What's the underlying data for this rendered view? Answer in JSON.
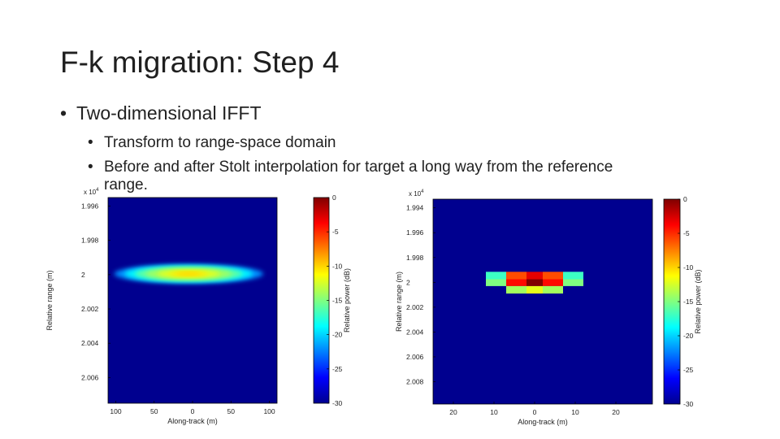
{
  "slide": {
    "title": "F-k migration: Step 4",
    "bullet_1": "Two-dimensional IFFT",
    "sub_bullet_1": "Transform to range-space domain",
    "sub_bullet_2_line_1": "Before and after Stolt interpolation for target a long way from the reference",
    "sub_bullet_2_line_2": "range."
  },
  "chart_data": [
    {
      "type": "heatmap",
      "title": "",
      "xlabel": "Along-track (m)",
      "ylabel": "Relative range (m)",
      "x_ticks": [
        100,
        50,
        0,
        50,
        100
      ],
      "x_tick_values": [
        -100,
        -50,
        0,
        50,
        100
      ],
      "xlim": [
        -110,
        110
      ],
      "y_ticks": [
        "1.996",
        "1.998",
        "2",
        "2.002",
        "2.004",
        "2.006"
      ],
      "y_tick_values": [
        1.996,
        1.998,
        2.0,
        2.002,
        2.004,
        2.006
      ],
      "ylim": [
        1.9955,
        2.0075
      ],
      "y_multiplier": "x 10^4",
      "background_db": -30,
      "blob": {
        "center_x": -5,
        "center_y": 1.99995,
        "half_width_x": 97,
        "half_height_y": 0.00055,
        "peak_db": -10
      },
      "colorbar": {
        "label": "Relative power (dB)",
        "ticks": [
          0,
          -5,
          -10,
          -15,
          -20,
          -25,
          -30
        ],
        "range": [
          -30,
          0
        ]
      }
    },
    {
      "type": "heatmap",
      "title": "",
      "xlabel": "Along-track (m)",
      "ylabel": "Relative range (m)",
      "x_ticks": [
        20,
        10,
        0,
        10,
        20
      ],
      "x_tick_values": [
        -20,
        -10,
        0,
        10,
        20
      ],
      "xlim": [
        -25,
        29
      ],
      "y_ticks": [
        "1.994",
        "1.996",
        "1.998",
        "2",
        "2.002",
        "2.004",
        "2.006",
        "2.008"
      ],
      "y_tick_values": [
        1.994,
        1.996,
        1.998,
        2.0,
        2.002,
        2.004,
        2.006,
        2.008
      ],
      "ylim": [
        1.9933,
        2.0098
      ],
      "y_multiplier": "x 10^4",
      "cells": [
        {
          "x0": -12,
          "x1": -7,
          "y0": 1.99915,
          "y1": 1.99975,
          "db": -17
        },
        {
          "x0": 7,
          "x1": 12,
          "y0": 1.99915,
          "y1": 1.99975,
          "db": -17
        },
        {
          "x0": -7,
          "x1": -2,
          "y0": 1.99915,
          "y1": 1.99975,
          "db": -6
        },
        {
          "x0": -2,
          "x1": 2,
          "y0": 1.99915,
          "y1": 1.99975,
          "db": -3
        },
        {
          "x0": 2,
          "x1": 7,
          "y0": 1.99915,
          "y1": 1.99975,
          "db": -6
        },
        {
          "x0": -7,
          "x1": -2,
          "y0": 1.99975,
          "y1": 2.0003,
          "db": -4
        },
        {
          "x0": -2,
          "x1": 2,
          "y0": 1.99975,
          "y1": 2.0003,
          "db": 0
        },
        {
          "x0": 2,
          "x1": 7,
          "y0": 1.99975,
          "y1": 2.0003,
          "db": -4
        },
        {
          "x0": -12,
          "x1": -7,
          "y0": 1.99975,
          "y1": 2.0003,
          "db": -15
        },
        {
          "x0": 7,
          "x1": 12,
          "y0": 1.99975,
          "y1": 2.0003,
          "db": -15
        },
        {
          "x0": -7,
          "x1": -2,
          "y0": 2.0003,
          "y1": 2.0009,
          "db": -14
        },
        {
          "x0": -2,
          "x1": 2,
          "y0": 2.0003,
          "y1": 2.0009,
          "db": -12
        },
        {
          "x0": 2,
          "x1": 7,
          "y0": 2.0003,
          "y1": 2.0009,
          "db": -14
        }
      ],
      "background_db": -30,
      "colorbar": {
        "label": "Relative power (dB)",
        "ticks": [
          0,
          -5,
          -10,
          -15,
          -20,
          -25,
          -30
        ],
        "range": [
          -30,
          0
        ]
      }
    }
  ]
}
